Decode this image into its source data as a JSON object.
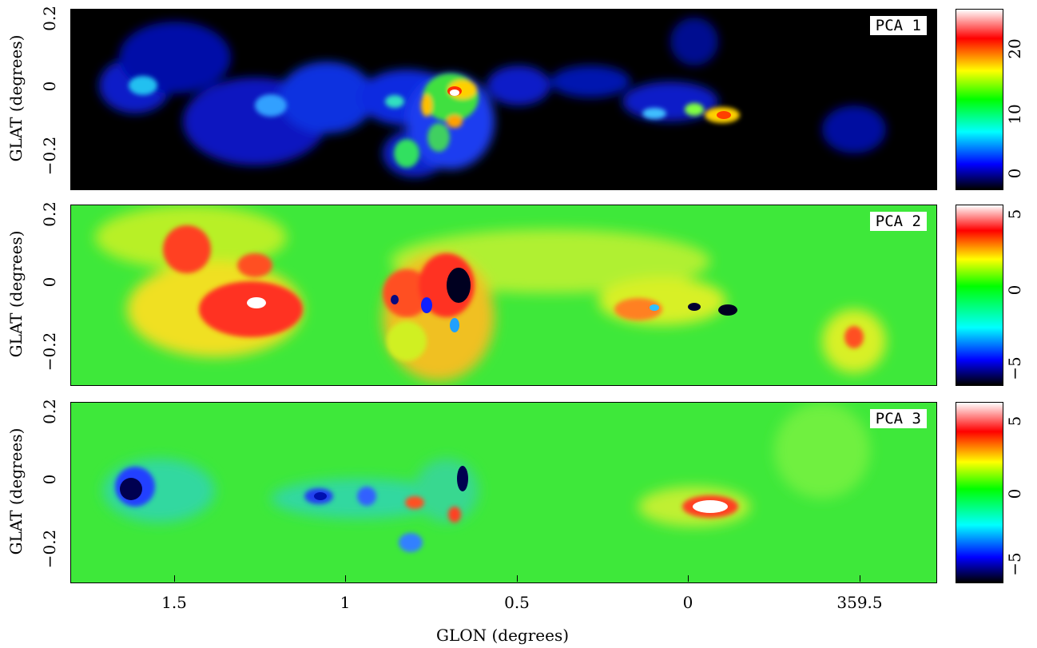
{
  "chart_data": {
    "type": "heatmap",
    "xlabel": "GLON (degrees)",
    "ylabel": "GLAT (degrees)",
    "x_ticks": [
      "1.5",
      "1",
      "0.5",
      "0",
      "359.5"
    ],
    "x_range": [
      1.8,
      -0.72
    ],
    "y_ticks": [
      "0.2",
      "0",
      "−0.2"
    ],
    "y_range": [
      -0.3,
      0.22
    ],
    "colormap": [
      "#000000",
      "#0000ff",
      "#00ffff",
      "#00ff00",
      "#ffff00",
      "#ff0000",
      "#ffffff"
    ],
    "panels": [
      {
        "name": "PCA 1",
        "colorbar_ticks": [
          "0",
          "10",
          "20"
        ],
        "colorbar_range": [
          -2,
          25
        ],
        "background": "#000000"
      },
      {
        "name": "PCA 2",
        "colorbar_ticks": [
          "−5",
          "0",
          "5"
        ],
        "colorbar_range": [
          -7,
          5
        ],
        "background": "#3ee83a"
      },
      {
        "name": "PCA 3",
        "colorbar_ticks": [
          "−5",
          "0",
          "5"
        ],
        "colorbar_range": [
          -7,
          6.5
        ],
        "background": "#3ee83a"
      }
    ]
  }
}
